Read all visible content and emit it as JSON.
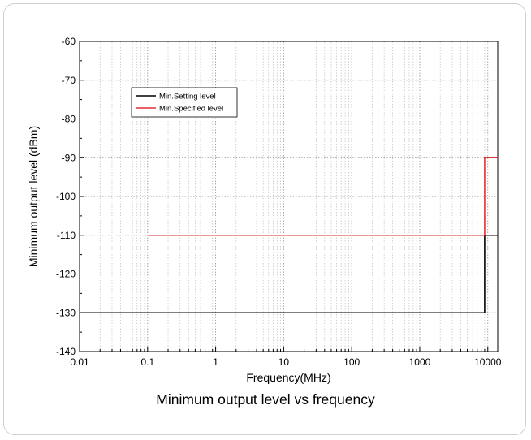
{
  "caption": "Minimum output level vs frequency",
  "chart_data": {
    "type": "line",
    "title": "",
    "xlabel": "Frequency(MHz)",
    "ylabel": "Minimum output level (dBm)",
    "x_scale": "log",
    "xlim": [
      0.01,
      14000
    ],
    "ylim": [
      -140,
      -60
    ],
    "x_ticks": [
      0.01,
      0.1,
      1,
      10,
      100,
      1000,
      10000
    ],
    "x_tick_labels": [
      "0.01",
      "0.1",
      "1",
      "10",
      "100",
      "1000",
      "10000"
    ],
    "y_ticks": [
      -140,
      -130,
      -120,
      -110,
      -100,
      -90,
      -80,
      -70,
      -60
    ],
    "y_tick_labels": [
      "-140",
      "-130",
      "-120",
      "-110",
      "-100",
      "-90",
      "-80",
      "-70",
      "-60"
    ],
    "grid": true,
    "legend_position": "top-left",
    "series": [
      {
        "name": "Min.Setting level",
        "color": "#000000",
        "x": [
          0.01,
          9000,
          9000,
          14000
        ],
        "y": [
          -130,
          -130,
          -110,
          -110
        ]
      },
      {
        "name": "Min.Specified level",
        "color": "#e03030",
        "x": [
          0.1,
          9000,
          9000,
          14000
        ],
        "y": [
          -110,
          -110,
          -90,
          -90
        ]
      }
    ]
  }
}
